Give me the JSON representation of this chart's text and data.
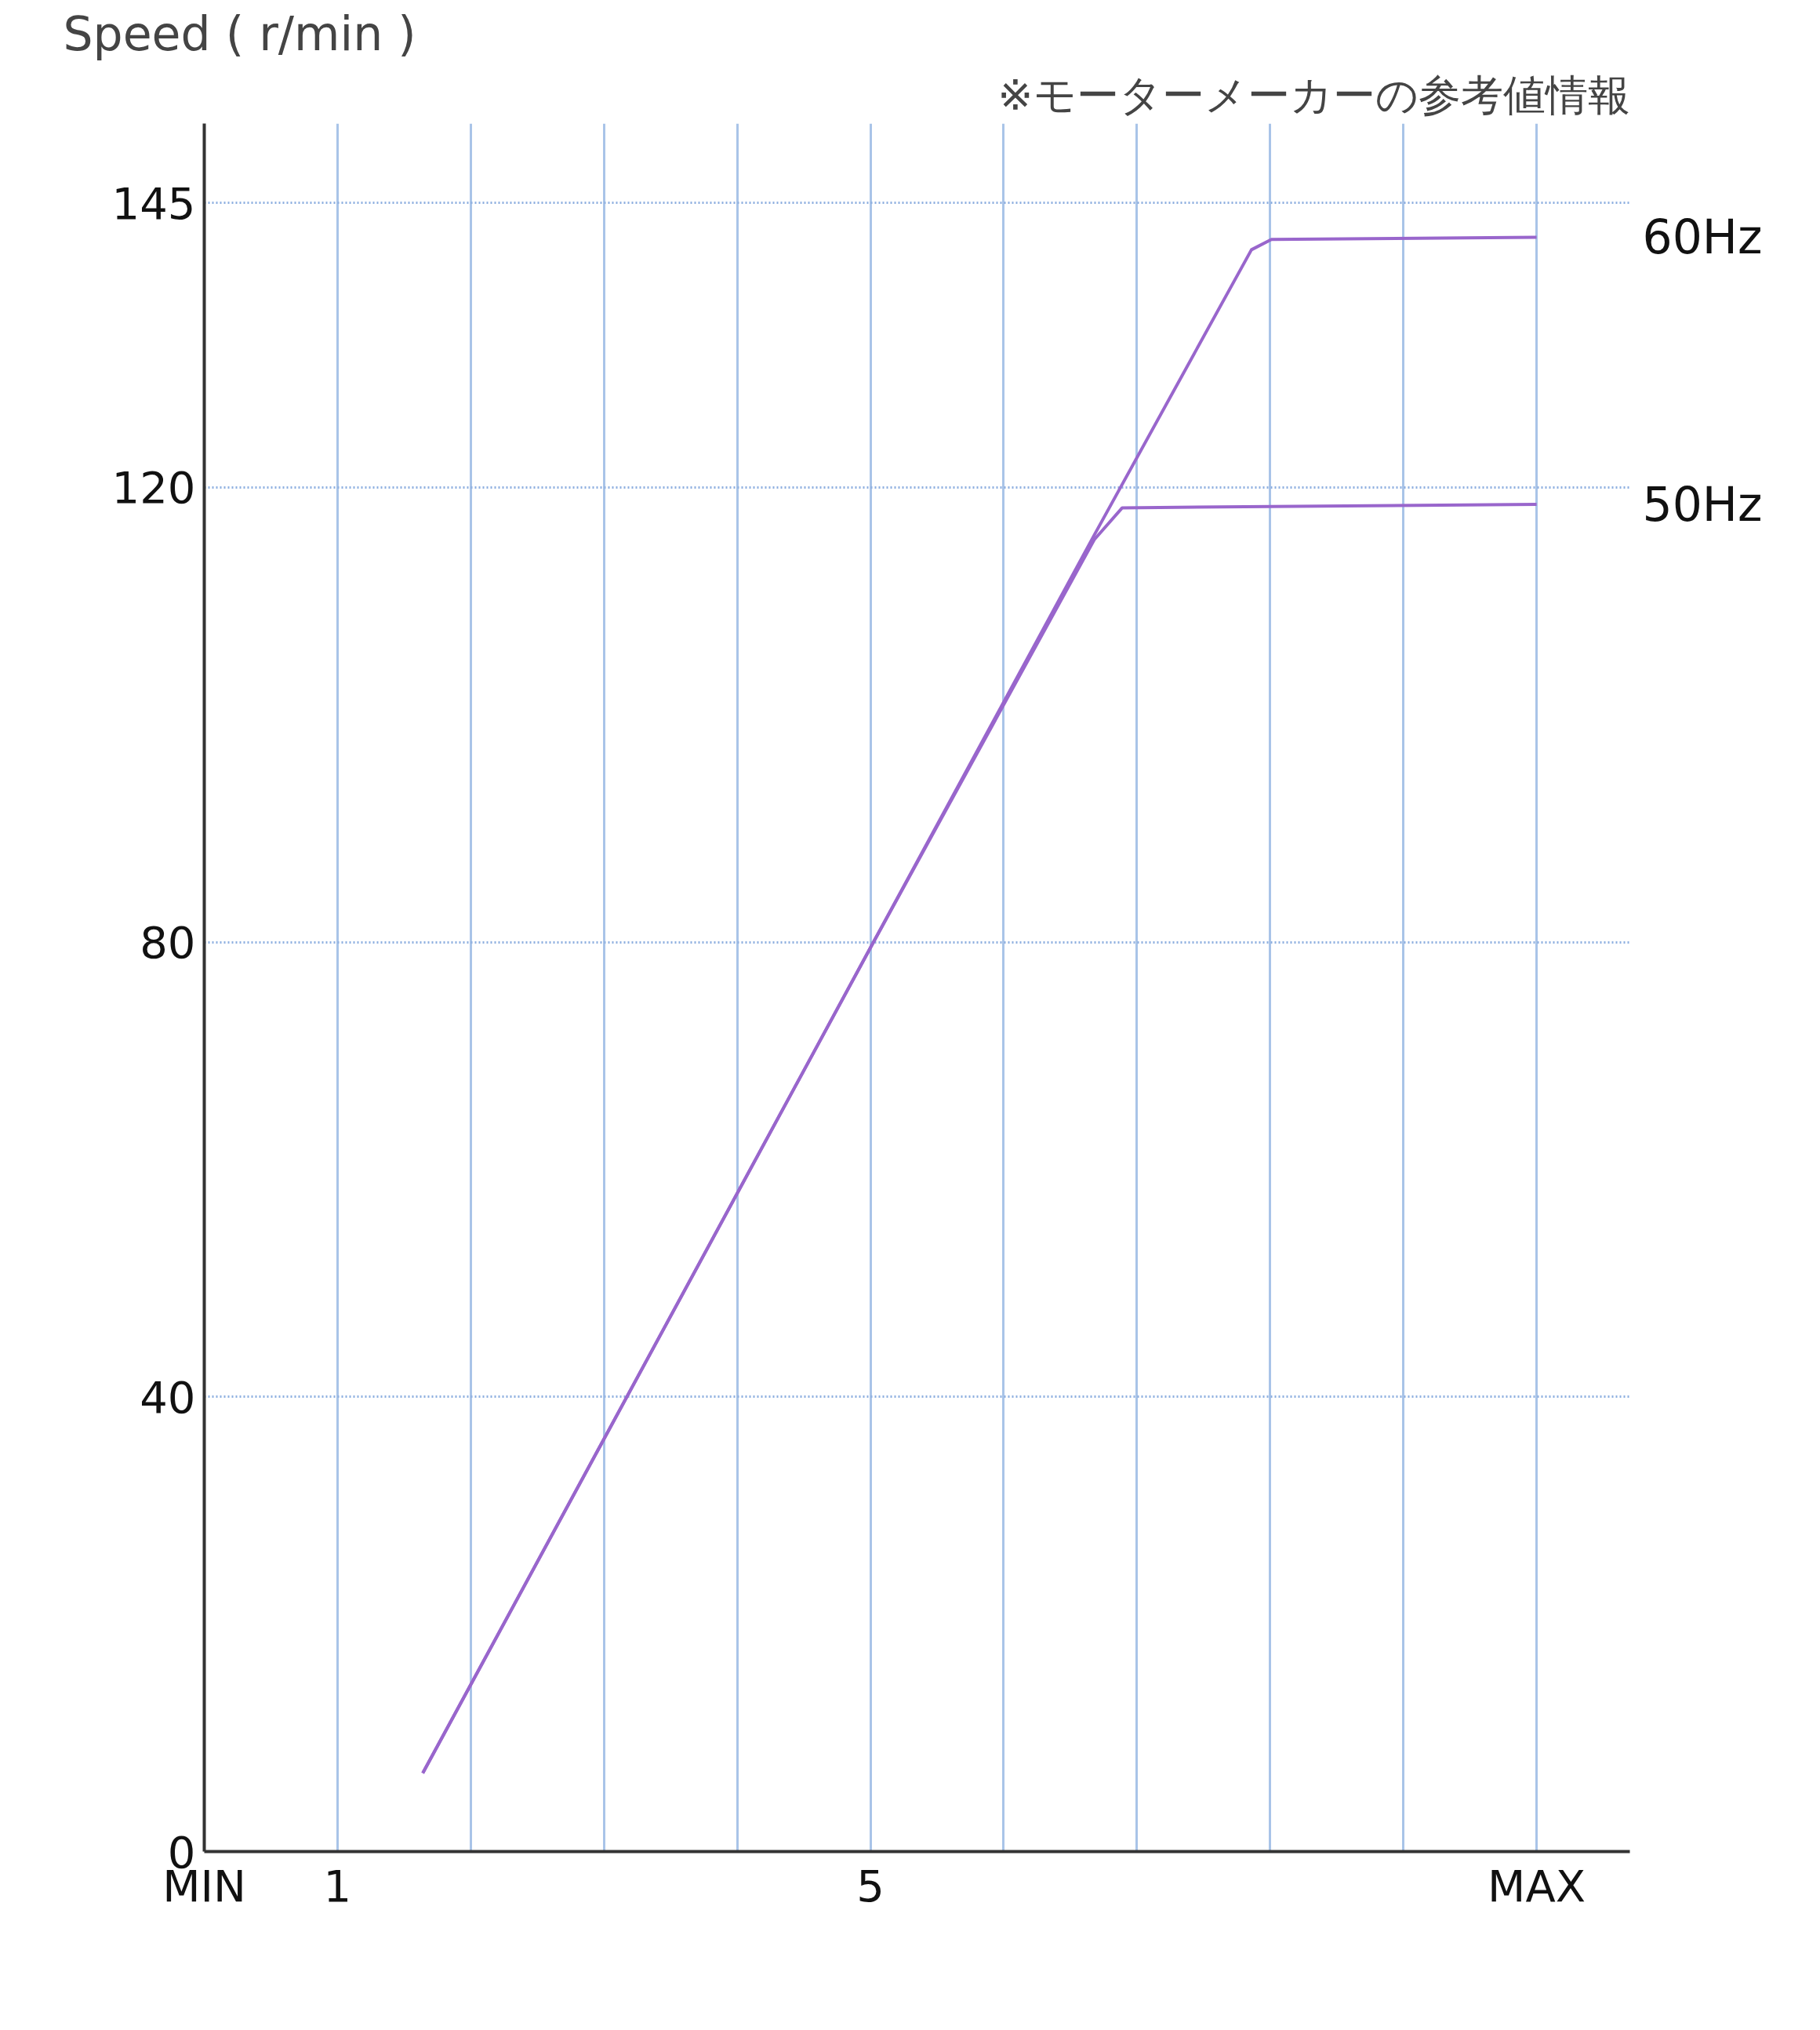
{
  "chart_data": {
    "type": "line",
    "ylabel": "Speed ( r/min )",
    "annotations": [
      "※モーターメーカーの参考値情報"
    ],
    "xlim": [
      0,
      10.7
    ],
    "ylim": [
      0,
      152
    ],
    "xticks": [
      {
        "value": 0,
        "label": "MIN"
      },
      1,
      {
        "value": 2,
        "label": null
      },
      {
        "value": 3,
        "label": null
      },
      {
        "value": 4,
        "label": null
      },
      5,
      {
        "value": 6,
        "label": null
      },
      {
        "value": 7,
        "label": null
      },
      {
        "value": 8,
        "label": null
      },
      {
        "value": 9,
        "label": null
      },
      {
        "value": 10,
        "label": "MAX"
      }
    ],
    "yticks": [
      0,
      40,
      80,
      120,
      145
    ],
    "grid": true,
    "marker": "none",
    "line_style": "solid",
    "series": [
      {
        "name": "60Hz",
        "color": "#9966cc",
        "x": [
          1.64,
          5,
          6.68,
          7.86,
          8.01,
          10
        ],
        "values": [
          6.9,
          79.5,
          115.8,
          140.9,
          141.8,
          142
        ]
      },
      {
        "name": "50Hz",
        "color": "#9966cc",
        "x": [
          1.64,
          5,
          6.68,
          6.89,
          10
        ],
        "values": [
          6.9,
          79.5,
          115.4,
          118.2,
          118.5
        ]
      }
    ]
  }
}
